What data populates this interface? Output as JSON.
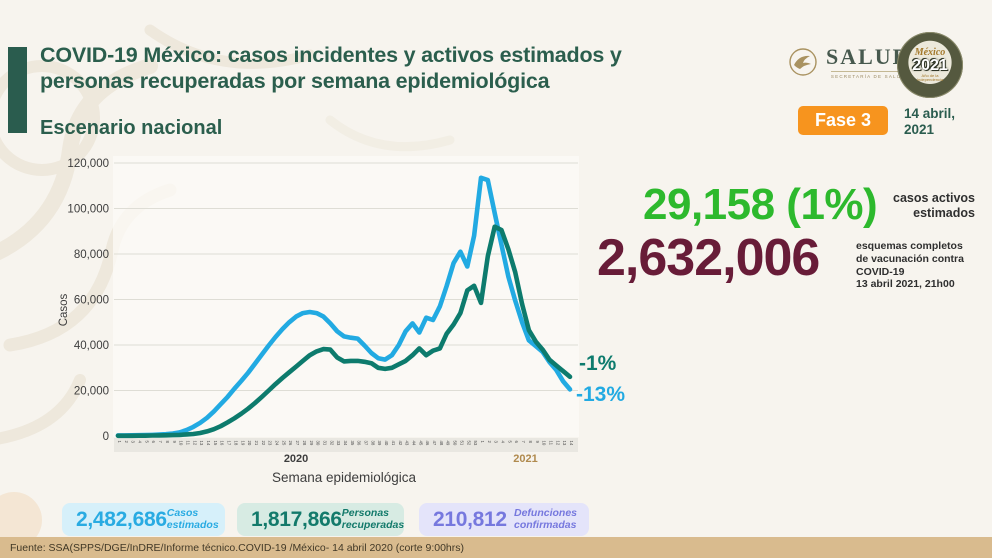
{
  "slide": {
    "title_line1": "COVID-19 México: casos incidentes y activos estimados y",
    "title_line2": "personas recuperadas por semana epidemiológica",
    "subtitle": "Escenario nacional"
  },
  "logos": {
    "salud": {
      "wordmark": "SALUD",
      "subtext": "SECRETARÍA DE SALUD"
    },
    "mexico2021": {
      "line1": "México",
      "line2": "2021",
      "line3": "Año de la Independencia"
    }
  },
  "phase_badge": {
    "label": "Fase 3",
    "bg": "#f7941e"
  },
  "report_date": {
    "line1": "14 abril,",
    "line2": "2021"
  },
  "stats": {
    "active_cases": {
      "value": "29,158 (1%)",
      "color": "#2db92d",
      "label_line1": "casos activos",
      "label_line2": "estimados"
    },
    "vaccination": {
      "value": "2,632,006",
      "color": "#681c38",
      "label_lines": [
        "esquemas completos",
        "de vacunación contra",
        "COVID-19",
        "13 abril 2021, 21h00"
      ]
    }
  },
  "chart_data": {
    "type": "line",
    "xlabel": "Semana epidemiológica",
    "ylabel": "Casos",
    "ylim": [
      0,
      120000
    ],
    "grid": true,
    "legend": "none",
    "yticks": [
      0,
      20000,
      40000,
      60000,
      80000,
      100000,
      120000
    ],
    "ytick_labels": [
      "0",
      "20,000",
      "40,000",
      "60,000",
      "80,000",
      "100,000",
      "120,000"
    ],
    "x_year_groups": [
      {
        "year": "2020",
        "color": "#3d3d3d",
        "weeks": [
          1,
          2,
          3,
          4,
          5,
          6,
          7,
          8,
          9,
          10,
          11,
          12,
          13,
          14,
          15,
          16,
          17,
          18,
          19,
          20,
          21,
          22,
          23,
          24,
          25,
          26,
          27,
          28,
          29,
          30,
          31,
          32,
          33,
          34,
          35,
          36,
          37,
          38,
          39,
          40,
          41,
          42,
          43,
          44,
          45,
          46,
          47,
          48,
          49,
          50,
          51,
          52,
          53
        ]
      },
      {
        "year": "2021",
        "color": "#b08a4e",
        "weeks": [
          1,
          2,
          3,
          4,
          5,
          6,
          7,
          8,
          9,
          10,
          11,
          12,
          13,
          14
        ]
      }
    ],
    "series": [
      {
        "name": "Casos incidentes estimados",
        "color": "#22aae2",
        "values": [
          250,
          250,
          300,
          350,
          400,
          500,
          600,
          800,
          1100,
          1600,
          2600,
          4000,
          5800,
          8000,
          10800,
          14000,
          17200,
          20800,
          24200,
          27800,
          31800,
          35800,
          39800,
          43500,
          47000,
          50000,
          52500,
          54000,
          54500,
          54000,
          52500,
          49500,
          46000,
          43800,
          43200,
          42800,
          39800,
          36500,
          34200,
          33600,
          35500,
          40000,
          46000,
          49500,
          45500,
          52000,
          51000,
          57000,
          66000,
          76000,
          81000,
          74500,
          88000,
          113500,
          112500,
          98000,
          84000,
          70000,
          59500,
          50000,
          42000,
          39500,
          37000,
          32500,
          29000,
          24000,
          20500
        ]
      },
      {
        "name": "Personas recuperadas",
        "color": "#0d7b6d",
        "values": [
          100,
          100,
          100,
          150,
          150,
          200,
          250,
          300,
          400,
          500,
          700,
          900,
          1300,
          2000,
          3000,
          4300,
          6000,
          7800,
          9800,
          12000,
          14500,
          17200,
          20000,
          22800,
          25500,
          28000,
          30500,
          33000,
          35500,
          37200,
          38200,
          38000,
          34500,
          32800,
          33000,
          33000,
          32600,
          32000,
          30000,
          29500,
          30000,
          31500,
          33000,
          35500,
          38500,
          35500,
          37500,
          38500,
          45000,
          49000,
          54000,
          64000,
          66000,
          58500,
          79000,
          92000,
          90500,
          82000,
          72000,
          58000,
          46500,
          41500,
          38000,
          33500,
          31000,
          28500,
          26000
        ]
      }
    ],
    "annotations": [
      {
        "text": "-1%",
        "series": "Personas recuperadas",
        "color": "#0d7b6d"
      },
      {
        "text": "-13%",
        "series": "Casos incidentes estimados",
        "color": "#22aae2"
      }
    ]
  },
  "summary_badges": [
    {
      "value": "2,482,686",
      "label_line1": "Casos",
      "label_line2": "estimados",
      "color": "#29abe2",
      "bg": "#d6f0fa"
    },
    {
      "value": "1,817,866",
      "label_line1": "Personas",
      "label_line2": "recuperadas",
      "color": "#137a6b",
      "bg": "#d7ebe3"
    },
    {
      "value": "210,812",
      "label_line1": "Defunciones",
      "label_line2": "confirmadas",
      "color": "#7678de",
      "bg": "#e4e4fa"
    }
  ],
  "footer": {
    "source": "Fuente: SSA(SPPS/DGE/InDRE/Informe técnico.COVID-19 /México- 14 abril 2020 (corte 9:00hrs)",
    "bg": "#d9bb8e"
  }
}
